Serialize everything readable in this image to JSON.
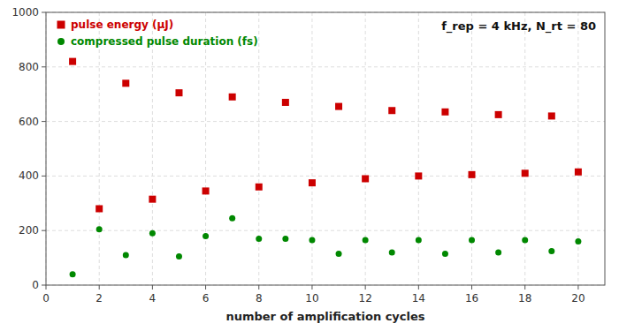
{
  "chart_data": {
    "type": "scatter",
    "title": "f_rep = 4 kHz, N_rt = 80",
    "x_label": "number of amplification cycles",
    "x": [
      1,
      2,
      3,
      4,
      5,
      6,
      7,
      8,
      9,
      10,
      11,
      12,
      13,
      14,
      15,
      16,
      17,
      18,
      19,
      20
    ],
    "series": [
      {
        "name": "pulse energy (μJ)",
        "color": "#cc0000",
        "marker": "square",
        "values": [
          820,
          280,
          740,
          315,
          705,
          345,
          690,
          360,
          670,
          375,
          655,
          390,
          640,
          400,
          635,
          405,
          625,
          410,
          620,
          415
        ]
      },
      {
        "name": "compressed pulse duration (fs)",
        "color": "#008800",
        "marker": "circle",
        "values": [
          40,
          205,
          110,
          190,
          105,
          180,
          245,
          170,
          170,
          165,
          115,
          165,
          120,
          165,
          115,
          165,
          120,
          165,
          125,
          160
        ]
      }
    ],
    "xlim": [
      0,
      21
    ],
    "ylim": [
      0,
      1000
    ],
    "xticks": [
      0,
      2,
      4,
      6,
      8,
      10,
      12,
      14,
      16,
      18,
      20
    ],
    "yticks": [
      0,
      200,
      400,
      600,
      800,
      1000
    ],
    "grid": true,
    "legend": "upper left"
  }
}
